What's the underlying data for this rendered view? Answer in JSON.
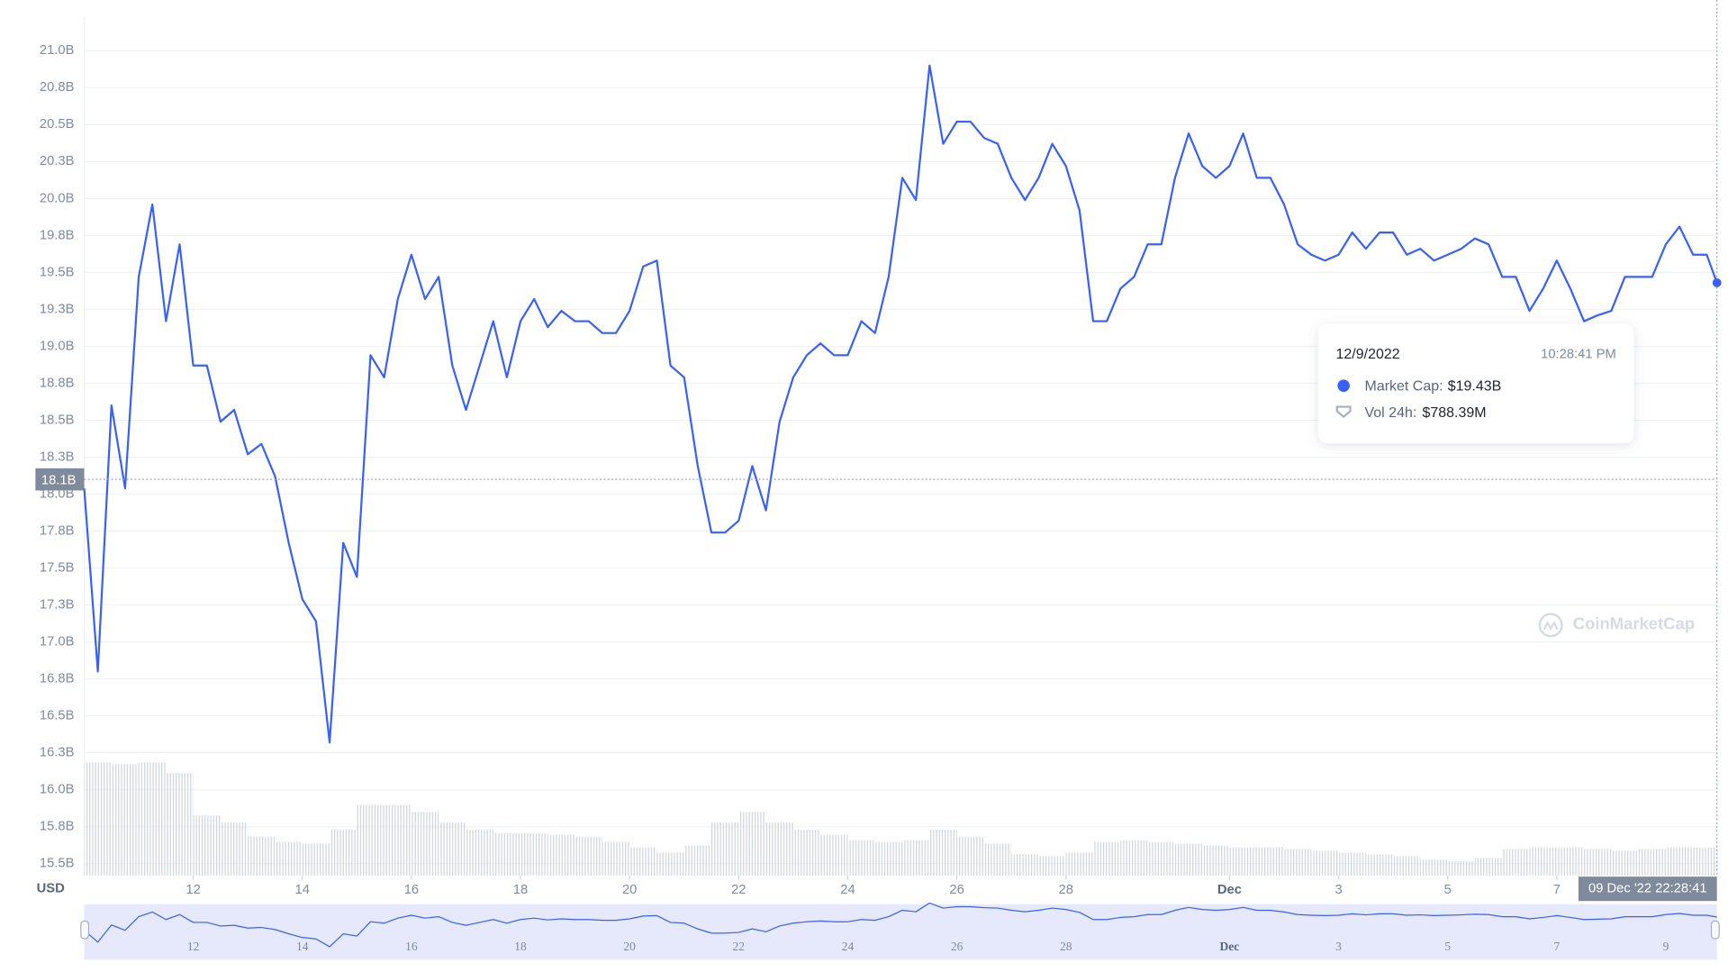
{
  "chart_data": {
    "type": "line",
    "axis_label": "USD",
    "color": "#3861fb",
    "ylim": [
      15.42,
      21.23
    ],
    "yticks": [
      {
        "value": 15.5,
        "label": "15.5B"
      },
      {
        "value": 15.75,
        "label": "15.8B"
      },
      {
        "value": 16.0,
        "label": "16.0B"
      },
      {
        "value": 16.25,
        "label": "16.3B"
      },
      {
        "value": 16.5,
        "label": "16.5B"
      },
      {
        "value": 16.75,
        "label": "16.8B"
      },
      {
        "value": 17.0,
        "label": "17.0B"
      },
      {
        "value": 17.25,
        "label": "17.3B"
      },
      {
        "value": 17.5,
        "label": "17.5B"
      },
      {
        "value": 17.75,
        "label": "17.8B"
      },
      {
        "value": 18.0,
        "label": "18.0B"
      },
      {
        "value": 18.25,
        "label": "18.3B"
      },
      {
        "value": 18.5,
        "label": "18.5B"
      },
      {
        "value": 18.75,
        "label": "18.8B"
      },
      {
        "value": 19.0,
        "label": "19.0B"
      },
      {
        "value": 19.25,
        "label": "19.3B"
      },
      {
        "value": 19.5,
        "label": "19.5B"
      },
      {
        "value": 19.75,
        "label": "19.8B"
      },
      {
        "value": 20.0,
        "label": "20.0B"
      },
      {
        "value": 20.25,
        "label": "20.3B"
      },
      {
        "value": 20.5,
        "label": "20.5B"
      },
      {
        "value": 20.75,
        "label": "20.8B"
      },
      {
        "value": 21.0,
        "label": "21.0B"
      }
    ],
    "xlim": [
      "2022-11-10T00:00",
      "2022-12-09T22:28:41"
    ],
    "xticks": [
      {
        "value": "2022-11-12T00:00",
        "label": "12"
      },
      {
        "value": "2022-11-14T00:00",
        "label": "14"
      },
      {
        "value": "2022-11-16T00:00",
        "label": "16"
      },
      {
        "value": "2022-11-18T00:00",
        "label": "18"
      },
      {
        "value": "2022-11-20T00:00",
        "label": "20"
      },
      {
        "value": "2022-11-22T00:00",
        "label": "22"
      },
      {
        "value": "2022-11-24T00:00",
        "label": "24"
      },
      {
        "value": "2022-11-26T00:00",
        "label": "26"
      },
      {
        "value": "2022-11-28T00:00",
        "label": "28"
      },
      {
        "value": "2022-12-01T00:00",
        "label": "Dec"
      },
      {
        "value": "2022-12-03T00:00",
        "label": "3"
      },
      {
        "value": "2022-12-05T00:00",
        "label": "5"
      },
      {
        "value": "2022-12-07T00:00",
        "label": "7"
      }
    ],
    "navigator_xticks": [
      {
        "value": "2022-11-12T00:00",
        "label": "12"
      },
      {
        "value": "2022-11-14T00:00",
        "label": "14"
      },
      {
        "value": "2022-11-16T00:00",
        "label": "16"
      },
      {
        "value": "2022-11-18T00:00",
        "label": "18"
      },
      {
        "value": "2022-11-20T00:00",
        "label": "20"
      },
      {
        "value": "2022-11-22T00:00",
        "label": "22"
      },
      {
        "value": "2022-11-24T00:00",
        "label": "24"
      },
      {
        "value": "2022-11-26T00:00",
        "label": "26"
      },
      {
        "value": "2022-11-28T00:00",
        "label": "28"
      },
      {
        "value": "2022-12-01T00:00",
        "label": "Dec"
      },
      {
        "value": "2022-12-03T00:00",
        "label": "3"
      },
      {
        "value": "2022-12-05T00:00",
        "label": "5"
      },
      {
        "value": "2022-12-07T00:00",
        "label": "7"
      },
      {
        "value": "2022-12-09T00:00",
        "label": "9"
      }
    ],
    "x": [
      "2022-11-10T00:00",
      "2022-11-10T06:00",
      "2022-11-10T12:00",
      "2022-11-10T18:00",
      "2022-11-11T00:00",
      "2022-11-11T06:00",
      "2022-11-11T12:00",
      "2022-11-11T18:00",
      "2022-11-12T00:00",
      "2022-11-12T06:00",
      "2022-11-12T12:00",
      "2022-11-12T18:00",
      "2022-11-13T00:00",
      "2022-11-13T06:00",
      "2022-11-13T12:00",
      "2022-11-13T18:00",
      "2022-11-14T00:00",
      "2022-11-14T06:00",
      "2022-11-14T12:00",
      "2022-11-14T18:00",
      "2022-11-15T00:00",
      "2022-11-15T06:00",
      "2022-11-15T12:00",
      "2022-11-15T18:00",
      "2022-11-16T00:00",
      "2022-11-16T06:00",
      "2022-11-16T12:00",
      "2022-11-16T18:00",
      "2022-11-17T00:00",
      "2022-11-17T06:00",
      "2022-11-17T12:00",
      "2022-11-17T18:00",
      "2022-11-18T00:00",
      "2022-11-18T06:00",
      "2022-11-18T12:00",
      "2022-11-18T18:00",
      "2022-11-19T00:00",
      "2022-11-19T06:00",
      "2022-11-19T12:00",
      "2022-11-19T18:00",
      "2022-11-20T00:00",
      "2022-11-20T06:00",
      "2022-11-20T12:00",
      "2022-11-20T18:00",
      "2022-11-21T00:00",
      "2022-11-21T06:00",
      "2022-11-21T12:00",
      "2022-11-21T18:00",
      "2022-11-22T00:00",
      "2022-11-22T06:00",
      "2022-11-22T12:00",
      "2022-11-22T18:00",
      "2022-11-23T00:00",
      "2022-11-23T06:00",
      "2022-11-23T12:00",
      "2022-11-23T18:00",
      "2022-11-24T00:00",
      "2022-11-24T06:00",
      "2022-11-24T12:00",
      "2022-11-24T18:00",
      "2022-11-25T00:00",
      "2022-11-25T06:00",
      "2022-11-25T12:00",
      "2022-11-25T18:00",
      "2022-11-26T00:00",
      "2022-11-26T06:00",
      "2022-11-26T12:00",
      "2022-11-26T18:00",
      "2022-11-27T00:00",
      "2022-11-27T06:00",
      "2022-11-27T12:00",
      "2022-11-27T18:00",
      "2022-11-28T00:00",
      "2022-11-28T06:00",
      "2022-11-28T12:00",
      "2022-11-28T18:00",
      "2022-11-29T00:00",
      "2022-11-29T06:00",
      "2022-11-29T12:00",
      "2022-11-29T18:00",
      "2022-11-30T00:00",
      "2022-11-30T06:00",
      "2022-11-30T12:00",
      "2022-11-30T18:00",
      "2022-12-01T00:00",
      "2022-12-01T06:00",
      "2022-12-01T12:00",
      "2022-12-01T18:00",
      "2022-12-02T00:00",
      "2022-12-02T06:00",
      "2022-12-02T12:00",
      "2022-12-02T18:00",
      "2022-12-03T00:00",
      "2022-12-03T06:00",
      "2022-12-03T12:00",
      "2022-12-03T18:00",
      "2022-12-04T00:00",
      "2022-12-04T06:00",
      "2022-12-04T12:00",
      "2022-12-04T18:00",
      "2022-12-05T00:00",
      "2022-12-05T06:00",
      "2022-12-05T12:00",
      "2022-12-05T18:00",
      "2022-12-06T00:00",
      "2022-12-06T06:00",
      "2022-12-06T12:00",
      "2022-12-06T18:00",
      "2022-12-07T00:00",
      "2022-12-07T06:00",
      "2022-12-07T12:00",
      "2022-12-07T18:00",
      "2022-12-08T00:00",
      "2022-12-08T06:00",
      "2022-12-08T12:00",
      "2022-12-08T18:00",
      "2022-12-09T00:00",
      "2022-12-09T06:00",
      "2022-12-09T12:00",
      "2022-12-09T18:00",
      "2022-12-09T22:28:41"
    ],
    "values": [
      18.04,
      16.8,
      18.6,
      18.04,
      19.47,
      19.96,
      19.17,
      19.69,
      18.87,
      18.87,
      18.49,
      18.57,
      18.27,
      18.34,
      18.12,
      17.67,
      17.29,
      17.14,
      16.32,
      17.67,
      17.44,
      18.94,
      18.79,
      19.32,
      19.62,
      19.32,
      19.47,
      18.87,
      18.57,
      18.87,
      19.17,
      18.79,
      19.17,
      19.32,
      19.13,
      19.24,
      19.17,
      19.17,
      19.09,
      19.09,
      19.24,
      19.54,
      19.58,
      18.87,
      18.79,
      18.19,
      17.74,
      17.74,
      17.82,
      18.19,
      17.89,
      18.49,
      18.79,
      18.94,
      19.02,
      18.94,
      18.94,
      19.17,
      19.09,
      19.47,
      20.14,
      19.99,
      20.9,
      20.37,
      20.52,
      20.52,
      20.41,
      20.37,
      20.14,
      19.99,
      20.14,
      20.37,
      20.22,
      19.92,
      19.17,
      19.17,
      19.39,
      19.47,
      19.69,
      19.69,
      20.14,
      20.44,
      20.22,
      20.14,
      20.22,
      20.44,
      20.14,
      20.14,
      19.96,
      19.69,
      19.62,
      19.58,
      19.62,
      19.77,
      19.66,
      19.77,
      19.77,
      19.62,
      19.66,
      19.58,
      19.62,
      19.66,
      19.73,
      19.69,
      19.47,
      19.47,
      19.24,
      19.39,
      19.58,
      19.39,
      19.17,
      19.21,
      19.24,
      19.47,
      19.47,
      19.47,
      19.69,
      19.81,
      19.62,
      19.62,
      19.43
    ],
    "volume": {
      "color": "#cfd3da",
      "x": [
        "2022-11-10T00:00",
        "2022-11-10T12:00",
        "2022-11-11T00:00",
        "2022-11-11T12:00",
        "2022-11-12T00:00",
        "2022-11-12T12:00",
        "2022-11-13T00:00",
        "2022-11-13T12:00",
        "2022-11-14T00:00",
        "2022-11-14T12:00",
        "2022-11-15T00:00",
        "2022-11-15T12:00",
        "2022-11-16T00:00",
        "2022-11-16T12:00",
        "2022-11-17T00:00",
        "2022-11-17T12:00",
        "2022-11-18T00:00",
        "2022-11-18T12:00",
        "2022-11-19T00:00",
        "2022-11-19T12:00",
        "2022-11-20T00:00",
        "2022-11-20T12:00",
        "2022-11-21T00:00",
        "2022-11-21T12:00",
        "2022-11-22T00:00",
        "2022-11-22T12:00",
        "2022-11-23T00:00",
        "2022-11-23T12:00",
        "2022-11-24T00:00",
        "2022-11-24T12:00",
        "2022-11-25T00:00",
        "2022-11-25T12:00",
        "2022-11-26T00:00",
        "2022-11-26T12:00",
        "2022-11-27T00:00",
        "2022-11-27T12:00",
        "2022-11-28T00:00",
        "2022-11-28T12:00",
        "2022-11-29T00:00",
        "2022-11-29T12:00",
        "2022-11-30T00:00",
        "2022-11-30T12:00",
        "2022-12-01T00:00",
        "2022-12-01T12:00",
        "2022-12-02T00:00",
        "2022-12-02T12:00",
        "2022-12-03T00:00",
        "2022-12-03T12:00",
        "2022-12-04T00:00",
        "2022-12-04T12:00",
        "2022-12-05T00:00",
        "2022-12-05T12:00",
        "2022-12-06T00:00",
        "2022-12-06T12:00",
        "2022-12-07T00:00",
        "2022-12-07T12:00",
        "2022-12-08T00:00",
        "2022-12-08T12:00",
        "2022-12-09T00:00",
        "2022-12-09T12:00"
      ],
      "values": [
        3200,
        3150,
        3200,
        2900,
        1700,
        1500,
        1100,
        950,
        900,
        1300,
        2000,
        2000,
        1800,
        1500,
        1300,
        1200,
        1200,
        1150,
        1100,
        950,
        800,
        650,
        850,
        1500,
        1800,
        1500,
        1300,
        1150,
        1000,
        950,
        1000,
        1300,
        1100,
        900,
        600,
        550,
        650,
        950,
        1000,
        950,
        900,
        850,
        800,
        800,
        750,
        700,
        650,
        600,
        550,
        450,
        400,
        500,
        750,
        800,
        800,
        750,
        700,
        750,
        800,
        788.39
      ]
    },
    "cursor": {
      "x": {
        "value": "2022-12-09T22:28:41",
        "label": "09 Dec '22 22:28:41"
      },
      "y": {
        "value": 18.1,
        "label": "18.1B"
      }
    },
    "tooltip": {
      "date": "12/9/2022",
      "time": "10:28:41 PM",
      "items": [
        {
          "name": "Market Cap:",
          "value": 19.43,
          "label": "$19.43B"
        },
        {
          "name": "Vol 24h:",
          "value": 788.39,
          "label": "$788.39M"
        }
      ]
    },
    "watermark": "CoinMarketCap"
  }
}
